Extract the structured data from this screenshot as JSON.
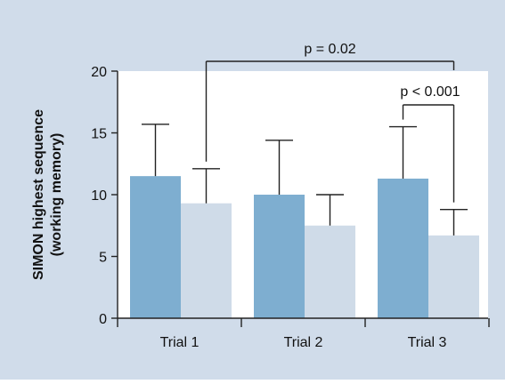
{
  "chart_data": {
    "type": "bar",
    "categories": [
      "Trial 1",
      "Trial 2",
      "Trial 3"
    ],
    "series": [
      {
        "values": [
          11.5,
          10.0,
          11.3
        ],
        "errors": [
          4.2,
          4.4,
          4.2
        ]
      },
      {
        "values": [
          9.3,
          7.5,
          6.7
        ],
        "errors": [
          2.8,
          2.5,
          2.1
        ]
      }
    ],
    "ylabel_lines": [
      "SIMON highest sequence",
      "(working memory)"
    ],
    "yticks": [
      0,
      5,
      10,
      15,
      20
    ],
    "ylim": [
      0,
      20
    ],
    "grid": false,
    "annotations": [
      {
        "text": "p = 0.02",
        "from_series": 1,
        "from_category": 0,
        "to_series": 1,
        "to_category": 2
      },
      {
        "text": "p < 0.001",
        "from_series": 0,
        "from_category": 2,
        "to_series": 1,
        "to_category": 2
      }
    ],
    "colors": {
      "background": "#d0dcea",
      "plot_area": "#ffffff",
      "series": [
        "#7eaed0",
        "#cfdbe8"
      ],
      "line": "#222222"
    }
  }
}
